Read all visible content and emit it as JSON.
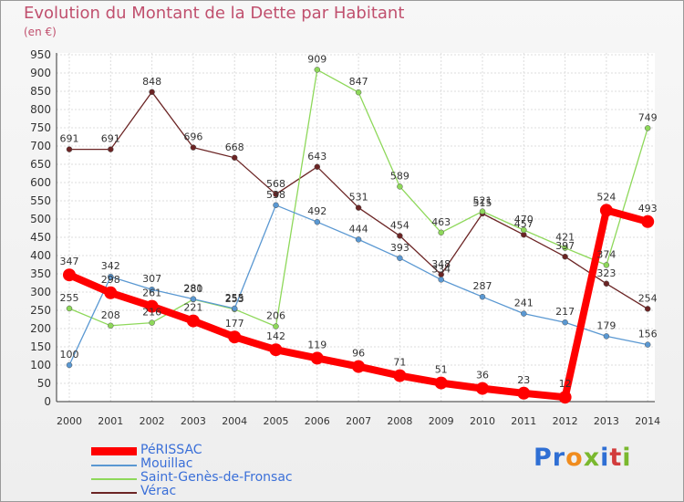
{
  "header": {
    "title": "Evolution du Montant de la Dette par Habitant",
    "subtitle": "(en €)"
  },
  "logo": {
    "text": "Proxiti",
    "letters": [
      {
        "ch": "P",
        "color": "#2f6fd4"
      },
      {
        "ch": "r",
        "color": "#2f6fd4"
      },
      {
        "ch": "o",
        "color": "#f08c1e"
      },
      {
        "ch": "x",
        "color": "#7ab82e"
      },
      {
        "ch": "i",
        "color": "#2f6fd4"
      },
      {
        "ch": "t",
        "color": "#d23c3c"
      },
      {
        "ch": "i",
        "color": "#7ab82e"
      }
    ]
  },
  "chart_data": {
    "type": "line",
    "x": [
      "2000",
      "2001",
      "2002",
      "2003",
      "2004",
      "2005",
      "2006",
      "2007",
      "2008",
      "2009",
      "2010",
      "2011",
      "2012",
      "2013",
      "2014"
    ],
    "ylim": [
      0,
      950
    ],
    "yticks": [
      0,
      50,
      100,
      150,
      200,
      250,
      300,
      350,
      400,
      450,
      500,
      550,
      600,
      650,
      700,
      750,
      800,
      850,
      900,
      950
    ],
    "grid": true,
    "legend_position": "bottom-left",
    "series": [
      {
        "name": "Vérac",
        "color": "#6b2424",
        "values": [
          691,
          691,
          848,
          696,
          668,
          568,
          643,
          531,
          454,
          348,
          515,
          457,
          397,
          323,
          254
        ]
      },
      {
        "name": "Saint-Genès-de-Fronsac",
        "color": "#8ed85a",
        "values": [
          255,
          208,
          216,
          280,
          253,
          206,
          909,
          847,
          589,
          463,
          521,
          470,
          421,
          374,
          749
        ]
      },
      {
        "name": "Mouillac",
        "color": "#5a98d2",
        "values": [
          100,
          342,
          307,
          281,
          255,
          538,
          492,
          444,
          393,
          334,
          287,
          241,
          217,
          179,
          156
        ]
      },
      {
        "name": "PéRISSAC",
        "color": "#ff0000",
        "values": [
          347,
          298,
          261,
          221,
          177,
          142,
          119,
          96,
          71,
          51,
          36,
          23,
          12,
          524,
          493
        ]
      }
    ],
    "legend": [
      "PéRISSAC",
      "Mouillac",
      "Saint-Genès-de-Fronsac",
      "Vérac"
    ]
  }
}
